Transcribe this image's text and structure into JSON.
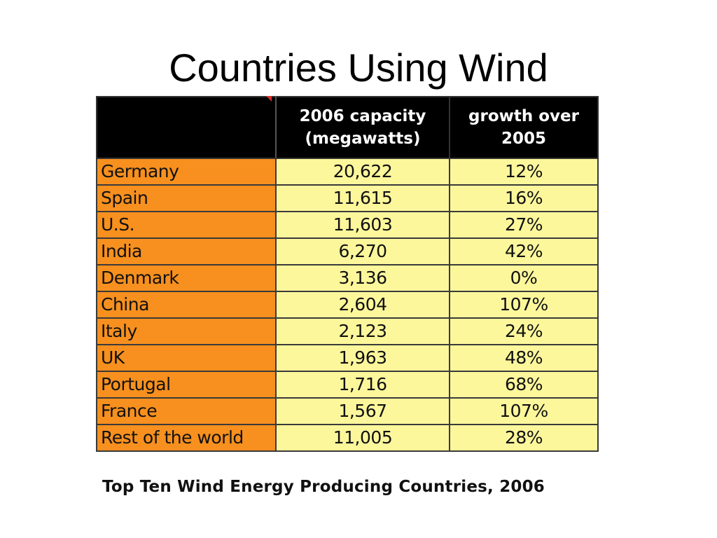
{
  "slide": {
    "title": "Countries Using Wind"
  },
  "table": {
    "headers": {
      "country": "",
      "capacity_line1": "2006 capacity",
      "capacity_line2": "(megawatts)",
      "growth_line1": "growth over",
      "growth_line2": "2005"
    },
    "rows": [
      {
        "country": "Germany",
        "capacity": "20,622",
        "growth": "12%"
      },
      {
        "country": "Spain",
        "capacity": "11,615",
        "growth": "16%"
      },
      {
        "country": "U.S.",
        "capacity": "11,603",
        "growth": "27%"
      },
      {
        "country": "India",
        "capacity": "6,270",
        "growth": "42%"
      },
      {
        "country": "Denmark",
        "capacity": "3,136",
        "growth": "0%"
      },
      {
        "country": "China",
        "capacity": "2,604",
        "growth": "107%"
      },
      {
        "country": "Italy",
        "capacity": "2,123",
        "growth": "24%"
      },
      {
        "country": "UK",
        "capacity": "1,963",
        "growth": "48%"
      },
      {
        "country": "Portugal",
        "capacity": "1,716",
        "growth": "68%"
      },
      {
        "country": "France",
        "capacity": "1,567",
        "growth": "107%"
      },
      {
        "country": "Rest of the world",
        "capacity": "11,005",
        "growth": "28%"
      }
    ],
    "caption": "Top Ten Wind Energy Producing Countries, 2006"
  },
  "colors": {
    "header_bg": "#000000",
    "country_cell": "#f7901e",
    "value_cell": "#fdf79c"
  }
}
